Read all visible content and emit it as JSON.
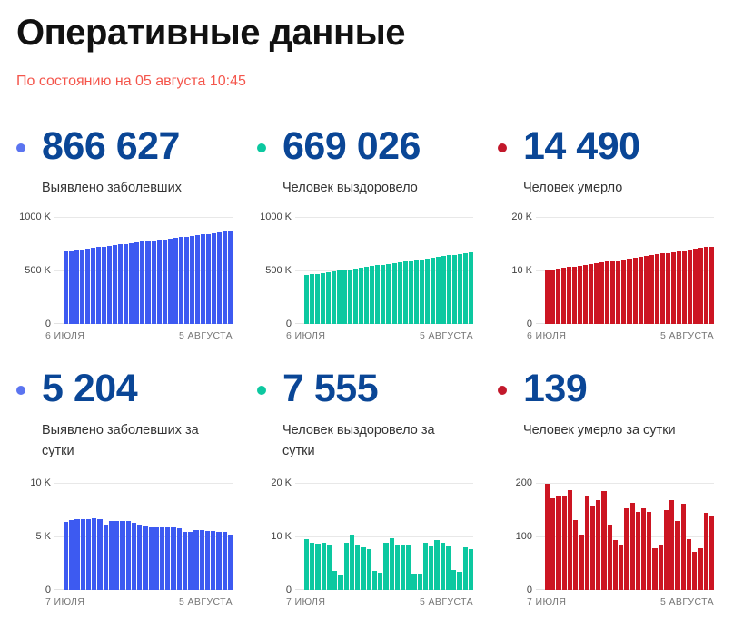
{
  "page": {
    "title": "Оперативные данные",
    "subtitle": "По состоянию на 05 августа 10:45"
  },
  "colors": {
    "accent_blue": "#3d5af1",
    "accent_green": "#0cc8a0",
    "accent_red": "#cc1522",
    "stat_number_navy": "#0a4696",
    "subtitle_red": "#f4564c",
    "axis_text": "#757575",
    "gridline": "#e8e8e8"
  },
  "cards": [
    {
      "value": "866 627",
      "label": "Выявлено заболевших",
      "dot_color": "#5b74f0"
    },
    {
      "value": "669 026",
      "label": "Человек выздоровело",
      "dot_color": "#0cc8a0"
    },
    {
      "value": "14 490",
      "label": "Человек умерло",
      "dot_color": "#c2182b"
    },
    {
      "value": "5 204",
      "label": "Выявлено заболевших за сутки",
      "dot_color": "#5b74f0"
    },
    {
      "value": "7 555",
      "label": "Человек выздоровело за сутки",
      "dot_color": "#0cc8a0"
    },
    {
      "value": "139",
      "label": "Человек умерло за сутки",
      "dot_color": "#c2182b"
    }
  ],
  "chart_data": [
    {
      "type": "bar",
      "title": "Выявлено заболевших (всего)",
      "color": "#3d5af1",
      "ylim": [
        0,
        1000000
      ],
      "y_ticks": [
        "1000 K",
        "500 K",
        "0"
      ],
      "x_start_label": "6 ИЮЛЯ",
      "x_end_label": "5 АВГУСТА",
      "grid": true,
      "values": [
        680000,
        686200,
        692400,
        698700,
        704900,
        711100,
        717300,
        723500,
        729800,
        736000,
        742200,
        748400,
        754700,
        760900,
        767100,
        773300,
        779500,
        785800,
        792000,
        798200,
        804400,
        810600,
        816900,
        823100,
        829300,
        835500,
        841700,
        848000,
        854200,
        860400,
        866627
      ]
    },
    {
      "type": "bar",
      "title": "Человек выздоровело (всего)",
      "color": "#0cc8a0",
      "ylim": [
        0,
        1000000
      ],
      "y_ticks": [
        "1000 K",
        "500 K",
        "0"
      ],
      "x_start_label": "6 ИЮЛЯ",
      "x_end_label": "5 АВГУСТА",
      "grid": true,
      "values": [
        455000,
        462100,
        469300,
        476400,
        483500,
        490700,
        497800,
        504900,
        512100,
        519200,
        526300,
        533500,
        540600,
        547700,
        554900,
        562000,
        569100,
        576300,
        583400,
        590500,
        597700,
        604800,
        611900,
        619100,
        626200,
        633300,
        640500,
        647600,
        654700,
        661900,
        669026
      ]
    },
    {
      "type": "bar",
      "title": "Человек умерло (всего)",
      "color": "#cc1522",
      "ylim": [
        0,
        20000
      ],
      "y_ticks": [
        "20 K",
        "10 K",
        "0"
      ],
      "x_start_label": "6 ИЮЛЯ",
      "x_end_label": "5 АВГУСТА",
      "grid": true,
      "values": [
        10000,
        10150,
        10300,
        10450,
        10600,
        10750,
        10900,
        11050,
        11200,
        11350,
        11500,
        11650,
        11800,
        11950,
        12100,
        12240,
        12390,
        12540,
        12690,
        12840,
        12990,
        13140,
        13290,
        13440,
        13590,
        13740,
        13890,
        14040,
        14190,
        14340,
        14490
      ]
    },
    {
      "type": "bar",
      "title": "Выявлено заболевших за сутки",
      "color": "#3d5af1",
      "ylim": [
        0,
        10000
      ],
      "y_ticks": [
        "10 K",
        "5 K",
        "0"
      ],
      "x_start_label": "7 ИЮЛЯ",
      "x_end_label": "5 АВГУСТА",
      "grid": true,
      "values": [
        6368,
        6562,
        6615,
        6645,
        6635,
        6670,
        6615,
        6100,
        6422,
        6428,
        6465,
        6406,
        6234,
        6109,
        5940,
        5862,
        5848,
        5811,
        5842,
        5810,
        5765,
        5462,
        5395,
        5607,
        5571,
        5475,
        5509,
        5427,
        5394,
        5204
      ]
    },
    {
      "type": "bar",
      "title": "Человек выздоровело за сутки",
      "color": "#0cc8a0",
      "ylim": [
        0,
        20000
      ],
      "y_ticks": [
        "20 K",
        "10 K",
        "0"
      ],
      "x_start_label": "7 ИЮЛЯ",
      "x_end_label": "5 АВГУСТА",
      "grid": true,
      "values": [
        9550,
        8800,
        8650,
        8850,
        8450,
        3600,
        2900,
        8850,
        10400,
        8500,
        7950,
        7600,
        3500,
        3200,
        8850,
        9600,
        8550,
        8500,
        8400,
        3100,
        3000,
        8900,
        8250,
        9250,
        8800,
        8250,
        3700,
        3400,
        7900,
        7555
      ]
    },
    {
      "type": "bar",
      "title": "Человек умерло за сутки",
      "color": "#cc1522",
      "ylim": [
        0,
        200
      ],
      "y_ticks": [
        "200",
        "100",
        "0"
      ],
      "x_start_label": "7 ИЮЛЯ",
      "x_end_label": "5 АВГУСТА",
      "grid": true,
      "values": [
        198,
        172,
        175,
        174,
        187,
        130,
        104,
        175,
        156,
        167,
        185,
        122,
        93,
        85,
        153,
        163,
        146,
        152,
        146,
        78,
        85,
        150,
        168,
        129,
        161,
        95,
        71,
        78,
        144,
        139
      ]
    }
  ]
}
